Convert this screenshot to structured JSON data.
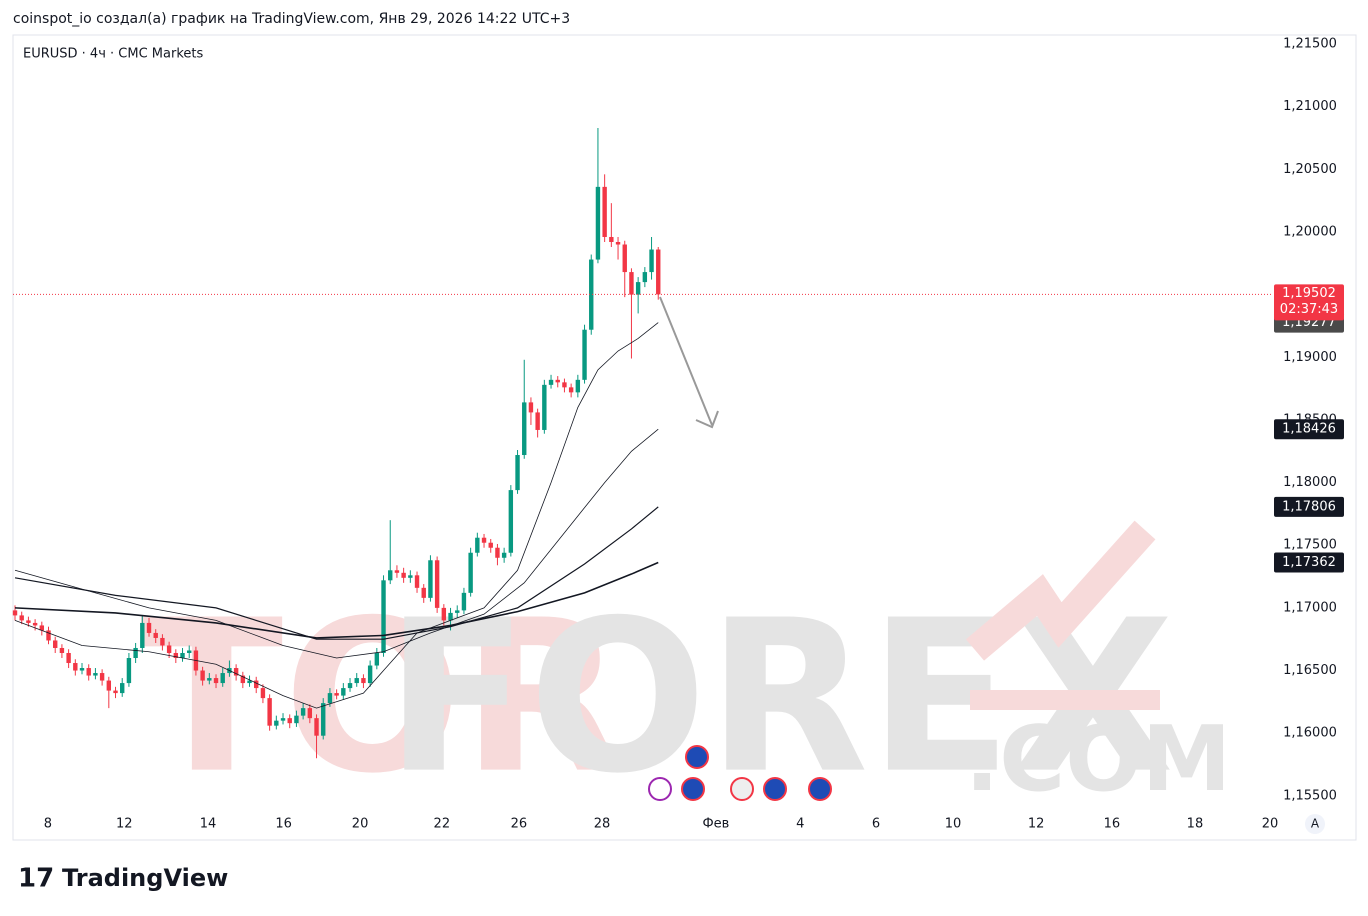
{
  "chart_data": {
    "type": "candlestick",
    "header": "coinspot_io создал(а) график на TradingView.com, Янв 29, 2026 14:22 UTC+3",
    "title": "EURUSD · 4ч · CMC Markets",
    "footer": "TradingView",
    "scale_button": "A",
    "watermark": {
      "part1": "TOR",
      "part2": "FOREX",
      "part3": ".COM"
    },
    "up_color": "#089981",
    "down_color": "#f23645",
    "xlim": [
      -0.3,
      187.6
    ],
    "xticks": [
      {
        "value": 4.9,
        "label": "8"
      },
      {
        "value": 16.3,
        "label": "12"
      },
      {
        "value": 28.8,
        "label": "14"
      },
      {
        "value": 40.1,
        "label": "16"
      },
      {
        "value": 51.5,
        "label": "20"
      },
      {
        "value": 63.7,
        "label": "22"
      },
      {
        "value": 75.2,
        "label": "26"
      },
      {
        "value": 87.6,
        "label": "28"
      },
      {
        "value": 104.6,
        "label": "Фев"
      },
      {
        "value": 117.2,
        "label": "4"
      },
      {
        "value": 128.5,
        "label": "6"
      },
      {
        "value": 140,
        "label": "10"
      },
      {
        "value": 152.4,
        "label": "12"
      },
      {
        "value": 163.7,
        "label": "16"
      },
      {
        "value": 176.1,
        "label": "18"
      },
      {
        "value": 187.3,
        "label": "20"
      }
    ],
    "ylim": [
      1.15387,
      1.21572
    ],
    "yticks": [
      {
        "value": 1.155,
        "label": "1,15500"
      },
      {
        "value": 1.16,
        "label": "1,16000"
      },
      {
        "value": 1.165,
        "label": "1,16500"
      },
      {
        "value": 1.17,
        "label": "1,17000"
      },
      {
        "value": 1.175,
        "label": "1,17500"
      },
      {
        "value": 1.18,
        "label": "1,18000"
      },
      {
        "value": 1.185,
        "label": "1,18500"
      },
      {
        "value": 1.19,
        "label": "1,19000"
      },
      {
        "value": 1.195,
        "label": "1,19500"
      },
      {
        "value": 1.2,
        "label": "1,20000"
      },
      {
        "value": 1.205,
        "label": "1,20500"
      },
      {
        "value": 1.21,
        "label": "1,21000"
      },
      {
        "value": 1.215,
        "label": "1,21500"
      }
    ],
    "candles": {
      "open": [
        1.1698,
        1.1694,
        1.169,
        1.1688,
        1.1686,
        1.1682,
        1.1674,
        1.1668,
        1.1664,
        1.1656,
        1.165,
        1.1652,
        1.1646,
        1.1648,
        1.1642,
        1.1634,
        1.1632,
        1.164,
        1.166,
        1.1668,
        1.1688,
        1.168,
        1.1676,
        1.167,
        1.1664,
        1.166,
        1.1664,
        1.1666,
        1.165,
        1.1642,
        1.1644,
        1.164,
        1.1648,
        1.1652,
        1.1646,
        1.164,
        1.1642,
        1.1636,
        1.1628,
        1.1606,
        1.161,
        1.1612,
        1.1608,
        1.1614,
        1.162,
        1.1612,
        1.1598,
        1.1624,
        1.1632,
        1.163,
        1.1636,
        1.164,
        1.1644,
        1.164,
        1.1654,
        1.1664,
        1.1722,
        1.173,
        1.1728,
        1.1724,
        1.1726,
        1.1716,
        1.1708,
        1.1738,
        1.17,
        1.169,
        1.1696,
        1.1698,
        1.1712,
        1.1744,
        1.1756,
        1.1752,
        1.1748,
        1.174,
        1.1744,
        1.1794,
        1.1822,
        1.1864,
        1.1856,
        1.1842,
        1.1878,
        1.1882,
        1.188,
        1.1876,
        1.1872,
        1.1882,
        1.1922,
        1.1978,
        1.2036,
        1.1996,
        1.1992,
        1.199,
        1.1968,
        1.195,
        1.196,
        1.1968,
        1.1986
      ],
      "high": [
        1.1702,
        1.1697,
        1.1693,
        1.1691,
        1.1689,
        1.1685,
        1.1677,
        1.1671,
        1.1667,
        1.1659,
        1.1656,
        1.1655,
        1.1652,
        1.1651,
        1.1645,
        1.1637,
        1.1644,
        1.1664,
        1.1672,
        1.1694,
        1.1692,
        1.1683,
        1.1679,
        1.1673,
        1.1667,
        1.1668,
        1.167,
        1.1669,
        1.1653,
        1.1648,
        1.1647,
        1.1652,
        1.1658,
        1.1655,
        1.1649,
        1.1646,
        1.1645,
        1.1639,
        1.1631,
        1.1614,
        1.1616,
        1.1615,
        1.1618,
        1.1624,
        1.1623,
        1.1615,
        1.1628,
        1.1636,
        1.1635,
        1.164,
        1.1644,
        1.1648,
        1.1647,
        1.1658,
        1.1668,
        1.1726,
        1.177,
        1.1734,
        1.1732,
        1.173,
        1.1729,
        1.1719,
        1.1742,
        1.1741,
        1.1703,
        1.17,
        1.1702,
        1.1716,
        1.1748,
        1.176,
        1.1759,
        1.1755,
        1.1751,
        1.1748,
        1.1798,
        1.1826,
        1.1898,
        1.1868,
        1.1859,
        1.1882,
        1.1886,
        1.1885,
        1.1883,
        1.1879,
        1.1886,
        1.1926,
        1.1982,
        1.2083,
        1.2046,
        1.2023,
        1.1996,
        1.1993,
        1.1971,
        1.1964,
        1.1972,
        1.1996,
        1.1988
      ],
      "low": [
        1.169,
        1.1687,
        1.1685,
        1.1682,
        1.1678,
        1.1671,
        1.1664,
        1.166,
        1.1652,
        1.1646,
        1.1647,
        1.1642,
        1.1643,
        1.1638,
        1.162,
        1.1628,
        1.1629,
        1.1637,
        1.1656,
        1.1664,
        1.1677,
        1.1672,
        1.1666,
        1.166,
        1.1656,
        1.1657,
        1.166,
        1.1646,
        1.1638,
        1.1639,
        1.1636,
        1.1637,
        1.1645,
        1.1642,
        1.1636,
        1.1637,
        1.1632,
        1.1624,
        1.1602,
        1.1603,
        1.1607,
        1.1604,
        1.1605,
        1.1611,
        1.1608,
        1.158,
        1.1595,
        1.1621,
        1.1627,
        1.1627,
        1.1633,
        1.1637,
        1.1636,
        1.1637,
        1.1651,
        1.1661,
        1.1719,
        1.1724,
        1.172,
        1.172,
        1.1712,
        1.1704,
        1.1705,
        1.1696,
        1.1686,
        1.1682,
        1.1692,
        1.1695,
        1.1709,
        1.1741,
        1.1748,
        1.1744,
        1.1734,
        1.1736,
        1.1741,
        1.1791,
        1.1819,
        1.1846,
        1.1836,
        1.1839,
        1.1875,
        1.1876,
        1.1872,
        1.1868,
        1.1868,
        1.1879,
        1.1918,
        1.1975,
        1.1992,
        1.1988,
        1.1978,
        1.1948,
        1.1899,
        1.1935,
        1.1956,
        1.1962,
        1.1946
      ],
      "close": [
        1.1694,
        1.169,
        1.1688,
        1.1686,
        1.1682,
        1.1674,
        1.1668,
        1.1664,
        1.1656,
        1.165,
        1.1652,
        1.1646,
        1.1648,
        1.1642,
        1.1634,
        1.1632,
        1.164,
        1.166,
        1.1668,
        1.1688,
        1.168,
        1.1676,
        1.167,
        1.1664,
        1.166,
        1.1664,
        1.1666,
        1.165,
        1.1642,
        1.1644,
        1.164,
        1.1648,
        1.1652,
        1.1646,
        1.164,
        1.1642,
        1.1636,
        1.1628,
        1.1606,
        1.161,
        1.1612,
        1.1608,
        1.1614,
        1.162,
        1.1612,
        1.1598,
        1.1624,
        1.1632,
        1.163,
        1.1636,
        1.164,
        1.1644,
        1.164,
        1.1654,
        1.1664,
        1.1722,
        1.173,
        1.1728,
        1.1724,
        1.1726,
        1.1716,
        1.1708,
        1.1738,
        1.17,
        1.169,
        1.1696,
        1.1698,
        1.1712,
        1.1744,
        1.1756,
        1.1752,
        1.1748,
        1.174,
        1.1744,
        1.1794,
        1.1822,
        1.1864,
        1.1856,
        1.1842,
        1.1878,
        1.1882,
        1.188,
        1.1876,
        1.1872,
        1.1882,
        1.1922,
        1.1978,
        1.2036,
        1.1996,
        1.1992,
        1.199,
        1.1968,
        1.195,
        1.196,
        1.1968,
        1.1986,
        1.19502
      ]
    },
    "last_price": {
      "value": 1.19502,
      "label": "1,19502",
      "color": "#f23645"
    },
    "countdown": "02:37:43",
    "moving_averages": [
      {
        "color": "#131722",
        "width": 0.8,
        "x": [
          0,
          10,
          20,
          30,
          40,
          45,
          52,
          55,
          60,
          65,
          70,
          75,
          80,
          84,
          87,
          90,
          93,
          96
        ],
        "values": [
          1.169,
          1.167,
          1.1665,
          1.1655,
          1.163,
          1.162,
          1.1632,
          1.165,
          1.168,
          1.169,
          1.17,
          1.173,
          1.18,
          1.186,
          1.189,
          1.1905,
          1.1915,
          1.19277
        ],
        "last": {
          "value": 1.19277,
          "label": "1,19277"
        }
      },
      {
        "color": "#131722",
        "width": 0.8,
        "x": [
          0,
          10,
          20,
          30,
          40,
          48,
          55,
          62,
          70,
          76,
          82,
          88,
          92,
          96
        ],
        "values": [
          1.173,
          1.1715,
          1.17,
          1.169,
          1.167,
          1.166,
          1.1665,
          1.168,
          1.1695,
          1.172,
          1.176,
          1.18,
          1.1825,
          1.18426
        ],
        "last": {
          "value": 1.18426,
          "label": "1,18426"
        }
      },
      {
        "color": "#131722",
        "width": 1.2,
        "x": [
          0,
          15,
          30,
          45,
          55,
          65,
          75,
          85,
          92,
          96
        ],
        "values": [
          1.1724,
          1.171,
          1.17,
          1.1675,
          1.1675,
          1.1685,
          1.17,
          1.1735,
          1.1763,
          1.17806
        ],
        "last": {
          "value": 1.17806,
          "label": "1,17806"
        }
      },
      {
        "color": "#131722",
        "width": 1.6,
        "x": [
          0,
          15,
          30,
          45,
          55,
          65,
          75,
          85,
          92,
          96
        ],
        "values": [
          1.17,
          1.1696,
          1.1688,
          1.1676,
          1.1678,
          1.1686,
          1.1697,
          1.1712,
          1.1727,
          1.17362
        ],
        "last": {
          "value": 1.17362,
          "label": "1,17362"
        }
      }
    ]
  }
}
